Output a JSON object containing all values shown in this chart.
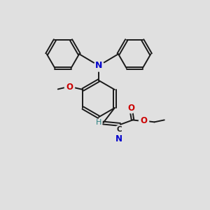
{
  "bg_color": "#e0e0e0",
  "bond_color": "#1a1a1a",
  "N_color": "#0000cc",
  "O_color": "#cc0000",
  "lw": 1.4,
  "fig_size": [
    3.0,
    3.0
  ],
  "dpi": 100,
  "xlim": [
    0,
    10
  ],
  "ylim": [
    0,
    10
  ]
}
